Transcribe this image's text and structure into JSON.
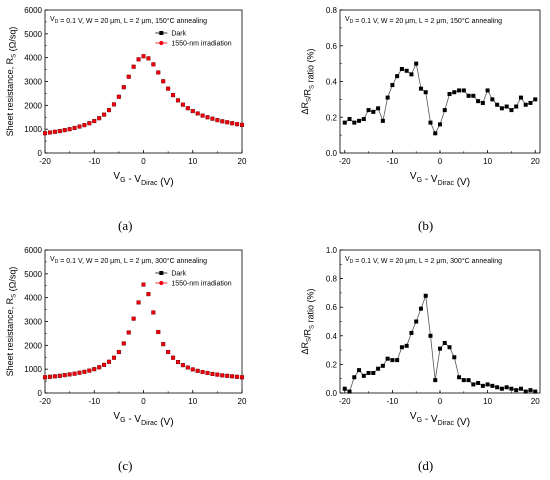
{
  "panel_labels": [
    "(a)",
    "(b)",
    "(c)",
    "(d)"
  ],
  "chart_data": [
    {
      "panel": "(a)",
      "type": "scatter",
      "title": "",
      "annotation": "V_D = 0.1 V, W = 20 μm, L = 2 μm, 150°C annealing",
      "xlabel": "V_G - V_Dirac (V)",
      "ylabel": "Sheet resistance, R_S (Ω/sq)",
      "xlim": [
        -20,
        20
      ],
      "ylim": [
        0,
        6000
      ],
      "xticks": [
        -20,
        -10,
        0,
        10,
        20
      ],
      "yticks": [
        0,
        1000,
        2000,
        3000,
        4000,
        5000,
        6000
      ],
      "grid": false,
      "legend": "top-right",
      "series": [
        {
          "name": "Dark",
          "color": "#000000",
          "marker": "square",
          "x": [
            -20,
            -19,
            -18,
            -17,
            -16,
            -15,
            -14,
            -13,
            -12,
            -11,
            -10,
            -9,
            -8,
            -7,
            -6,
            -5,
            -4,
            -3,
            -2,
            -1,
            0,
            1,
            2,
            3,
            4,
            5,
            6,
            7,
            8,
            9,
            10,
            11,
            12,
            13,
            14,
            15,
            16,
            17,
            18,
            19,
            20
          ],
          "y": [
            830,
            860,
            890,
            920,
            960,
            1000,
            1050,
            1110,
            1170,
            1250,
            1340,
            1460,
            1610,
            1800,
            2040,
            2360,
            2760,
            3200,
            3620,
            3930,
            4060,
            3970,
            3720,
            3380,
            3010,
            2700,
            2430,
            2210,
            2030,
            1880,
            1760,
            1660,
            1570,
            1500,
            1440,
            1380,
            1330,
            1290,
            1250,
            1210,
            1180
          ]
        },
        {
          "name": "1550-nm irradiation",
          "color": "#e8000b",
          "marker": "circle",
          "x": [
            -20,
            -19,
            -18,
            -17,
            -16,
            -15,
            -14,
            -13,
            -12,
            -11,
            -10,
            -9,
            -8,
            -7,
            -6,
            -5,
            -4,
            -3,
            -2,
            -1,
            0,
            1,
            2,
            3,
            4,
            5,
            6,
            7,
            8,
            9,
            10,
            11,
            12,
            13,
            14,
            15,
            16,
            17,
            18,
            19,
            20
          ],
          "y": [
            830,
            860,
            890,
            920,
            960,
            1000,
            1050,
            1110,
            1170,
            1250,
            1340,
            1460,
            1610,
            1800,
            2040,
            2360,
            2760,
            3200,
            3620,
            3930,
            4060,
            3970,
            3720,
            3380,
            3010,
            2700,
            2430,
            2210,
            2030,
            1880,
            1760,
            1660,
            1570,
            1500,
            1440,
            1380,
            1330,
            1290,
            1250,
            1210,
            1180
          ]
        }
      ]
    },
    {
      "panel": "(b)",
      "type": "line",
      "title": "",
      "annotation": "V_D = 0.1 V, W = 20 μm, L = 2 μm, 150°C annealing",
      "xlabel": "V_G - V_Dirac (V)",
      "ylabel": "ΔR_S/R_S ratio (%)",
      "xlim": [
        -21,
        21
      ],
      "ylim": [
        0,
        0.8
      ],
      "xticks": [
        -20,
        -10,
        0,
        10,
        20
      ],
      "yticks": [
        0.0,
        0.2,
        0.4,
        0.6,
        0.8
      ],
      "grid": false,
      "series": [
        {
          "name": "",
          "color": "#000000",
          "marker": "square",
          "x": [
            -20,
            -19,
            -18,
            -17,
            -16,
            -15,
            -14,
            -13,
            -12,
            -11,
            -10,
            -9,
            -8,
            -7,
            -6,
            -5,
            -4,
            -3,
            -2,
            -1,
            0,
            1,
            2,
            3,
            4,
            5,
            6,
            7,
            8,
            9,
            10,
            11,
            12,
            13,
            14,
            15,
            16,
            17,
            18,
            19,
            20
          ],
          "y": [
            0.17,
            0.19,
            0.17,
            0.18,
            0.19,
            0.24,
            0.23,
            0.25,
            0.18,
            0.31,
            0.38,
            0.43,
            0.47,
            0.46,
            0.44,
            0.5,
            0.36,
            0.34,
            0.17,
            0.11,
            0.16,
            0.24,
            0.33,
            0.34,
            0.35,
            0.35,
            0.32,
            0.32,
            0.29,
            0.28,
            0.35,
            0.3,
            0.27,
            0.25,
            0.26,
            0.24,
            0.26,
            0.31,
            0.27,
            0.28,
            0.3
          ]
        }
      ]
    },
    {
      "panel": "(c)",
      "type": "scatter",
      "title": "",
      "annotation": "V_D = 0.1 V, W = 20 μm, L = 2 μm, 300°C annealing",
      "xlabel": "V_G - V_Dirac (V)",
      "ylabel": "Sheet resistance, R_S (Ω/sq)",
      "xlim": [
        -20,
        20
      ],
      "ylim": [
        0,
        6000
      ],
      "xticks": [
        -20,
        -10,
        0,
        10,
        20
      ],
      "yticks": [
        0,
        1000,
        2000,
        3000,
        4000,
        5000,
        6000
      ],
      "grid": false,
      "legend": "top-right",
      "series": [
        {
          "name": "Dark",
          "color": "#000000",
          "marker": "square",
          "x": [
            -20,
            -19,
            -18,
            -17,
            -16,
            -15,
            -14,
            -13,
            -12,
            -11,
            -10,
            -9,
            -8,
            -7,
            -6,
            -5,
            -4,
            -3,
            -2,
            -1,
            0,
            1,
            2,
            3,
            4,
            5,
            6,
            7,
            8,
            9,
            10,
            11,
            12,
            13,
            14,
            15,
            16,
            17,
            18,
            19,
            20
          ],
          "y": [
            660,
            680,
            700,
            720,
            750,
            780,
            810,
            850,
            890,
            940,
            1000,
            1080,
            1180,
            1310,
            1480,
            1720,
            2080,
            2540,
            3120,
            3800,
            4550,
            4150,
            3380,
            2560,
            2050,
            1720,
            1480,
            1300,
            1170,
            1070,
            990,
            930,
            880,
            840,
            800,
            770,
            740,
            720,
            700,
            680,
            660
          ]
        },
        {
          "name": "1550-nm irradiation",
          "color": "#e8000b",
          "marker": "circle",
          "x": [
            -20,
            -19,
            -18,
            -17,
            -16,
            -15,
            -14,
            -13,
            -12,
            -11,
            -10,
            -9,
            -8,
            -7,
            -6,
            -5,
            -4,
            -3,
            -2,
            -1,
            0,
            1,
            2,
            3,
            4,
            5,
            6,
            7,
            8,
            9,
            10,
            11,
            12,
            13,
            14,
            15,
            16,
            17,
            18,
            19,
            20
          ],
          "y": [
            660,
            680,
            700,
            720,
            750,
            780,
            810,
            850,
            890,
            940,
            1000,
            1080,
            1180,
            1310,
            1480,
            1720,
            2080,
            2540,
            3120,
            3800,
            4550,
            4150,
            3380,
            2560,
            2050,
            1720,
            1480,
            1300,
            1170,
            1070,
            990,
            930,
            880,
            840,
            800,
            770,
            740,
            720,
            700,
            680,
            660
          ]
        }
      ]
    },
    {
      "panel": "(d)",
      "type": "line",
      "title": "",
      "annotation": "V_D = 0.1 V, W = 20 μm, L = 2 μm, 300°C annealing",
      "xlabel": "V_G - V_Dirac (V)",
      "ylabel": "ΔR_S/R_S ratio (%)",
      "xlim": [
        -21,
        21
      ],
      "ylim": [
        0,
        1.0
      ],
      "xticks": [
        -20,
        -10,
        0,
        10,
        20
      ],
      "yticks": [
        0.0,
        0.2,
        0.4,
        0.6,
        0.8,
        1.0
      ],
      "grid": false,
      "series": [
        {
          "name": "",
          "color": "#000000",
          "marker": "square",
          "x": [
            -20,
            -19,
            -18,
            -17,
            -16,
            -15,
            -14,
            -13,
            -12,
            -11,
            -10,
            -9,
            -8,
            -7,
            -6,
            -5,
            -4,
            -3,
            -2,
            -1,
            0,
            1,
            2,
            3,
            4,
            5,
            6,
            7,
            8,
            9,
            10,
            11,
            12,
            13,
            14,
            15,
            16,
            17,
            18,
            19,
            20
          ],
          "y": [
            0.03,
            0.01,
            0.11,
            0.16,
            0.12,
            0.14,
            0.14,
            0.17,
            0.19,
            0.24,
            0.23,
            0.23,
            0.32,
            0.33,
            0.42,
            0.5,
            0.59,
            0.68,
            0.4,
            0.09,
            0.31,
            0.35,
            0.32,
            0.25,
            0.11,
            0.09,
            0.09,
            0.06,
            0.07,
            0.05,
            0.06,
            0.05,
            0.04,
            0.03,
            0.04,
            0.03,
            0.02,
            0.03,
            0.01,
            0.02,
            0.01
          ]
        }
      ]
    }
  ]
}
